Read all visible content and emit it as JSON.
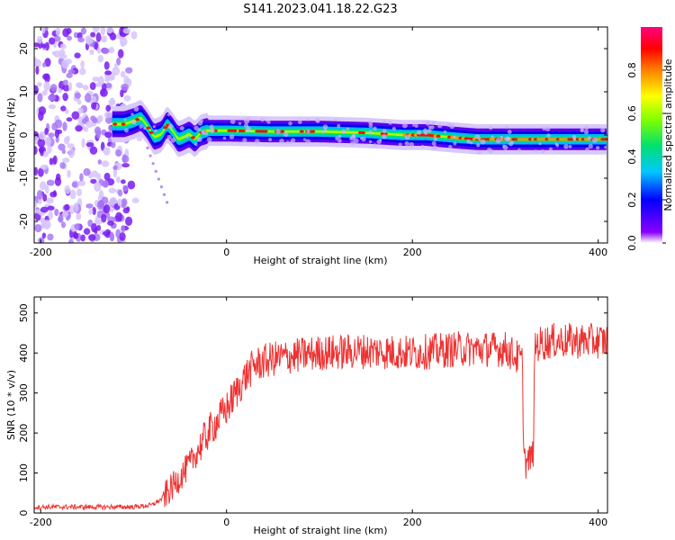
{
  "title": "S141.2023.041.18.22.G23",
  "chart_data": [
    {
      "type": "heatmap",
      "xlabel": "Height of straight line (km)",
      "ylabel": "Frequency (Hz)",
      "xlim": [
        -207,
        410
      ],
      "ylim": [
        -25,
        25
      ],
      "x_ticks": [
        "-200",
        "0",
        "200",
        "400"
      ],
      "x_tick_values": [
        -200,
        0,
        200,
        400
      ],
      "y_ticks": [
        "20",
        "10",
        "0",
        "-10",
        "-20"
      ],
      "y_tick_values": [
        20,
        10,
        0,
        -10,
        -20
      ],
      "colorbar": {
        "label": "Normalized spectral amplitude",
        "ticks": [
          "0.0",
          "0.2",
          "0.4",
          "0.6",
          "0.8"
        ],
        "tick_values": [
          0,
          0.2,
          0.4,
          0.6,
          0.8
        ],
        "range": [
          0,
          1
        ],
        "colormap": "rainbow"
      },
      "noise_region_x": [
        -207,
        -105
      ],
      "ridge": {
        "x": [
          -123,
          -110,
          -100,
          -92,
          -85,
          -78,
          -70,
          -64,
          -58,
          -52,
          -46,
          -40,
          -34,
          -28,
          -20,
          0,
          50,
          100,
          150,
          190,
          215,
          240,
          270,
          300,
          350,
          410
        ],
        "freq_hz": [
          2.5,
          2.5,
          3.2,
          4.0,
          2.0,
          -0.5,
          0.2,
          2.5,
          1.0,
          -1.0,
          -0.5,
          0.2,
          -1.0,
          0.5,
          1.0,
          1.0,
          0.8,
          0.8,
          0.5,
          0.0,
          0.0,
          -0.5,
          -1.0,
          -1.0,
          -1.0,
          -1.0
        ]
      }
    },
    {
      "type": "line",
      "xlabel": "Height of straight line (km)",
      "ylabel": "SNR (10 * v/v)",
      "xlim": [
        -207,
        410
      ],
      "ylim": [
        0,
        540
      ],
      "x_ticks": [
        "-200",
        "0",
        "200",
        "400"
      ],
      "x_tick_values": [
        -200,
        0,
        200,
        400
      ],
      "y_ticks": [
        "500",
        "400",
        "300",
        "200",
        "100",
        "0"
      ],
      "y_tick_values": [
        500,
        400,
        300,
        200,
        100,
        0
      ],
      "series_color": "#ee3333",
      "trend": {
        "x": [
          -207,
          -150,
          -100,
          -80,
          -70,
          -60,
          -50,
          -40,
          -30,
          -20,
          -10,
          0,
          10,
          20,
          30,
          50,
          80,
          100,
          150,
          200,
          250,
          300,
          318,
          320,
          322,
          330,
          332,
          350,
          400,
          410
        ],
        "y": [
          15,
          15,
          15,
          20,
          35,
          60,
          90,
          120,
          160,
          200,
          230,
          260,
          300,
          340,
          370,
          385,
          395,
          400,
          405,
          400,
          410,
          410,
          380,
          170,
          120,
          150,
          420,
          430,
          430,
          430
        ]
      },
      "noise_amplitude": 45
    }
  ]
}
